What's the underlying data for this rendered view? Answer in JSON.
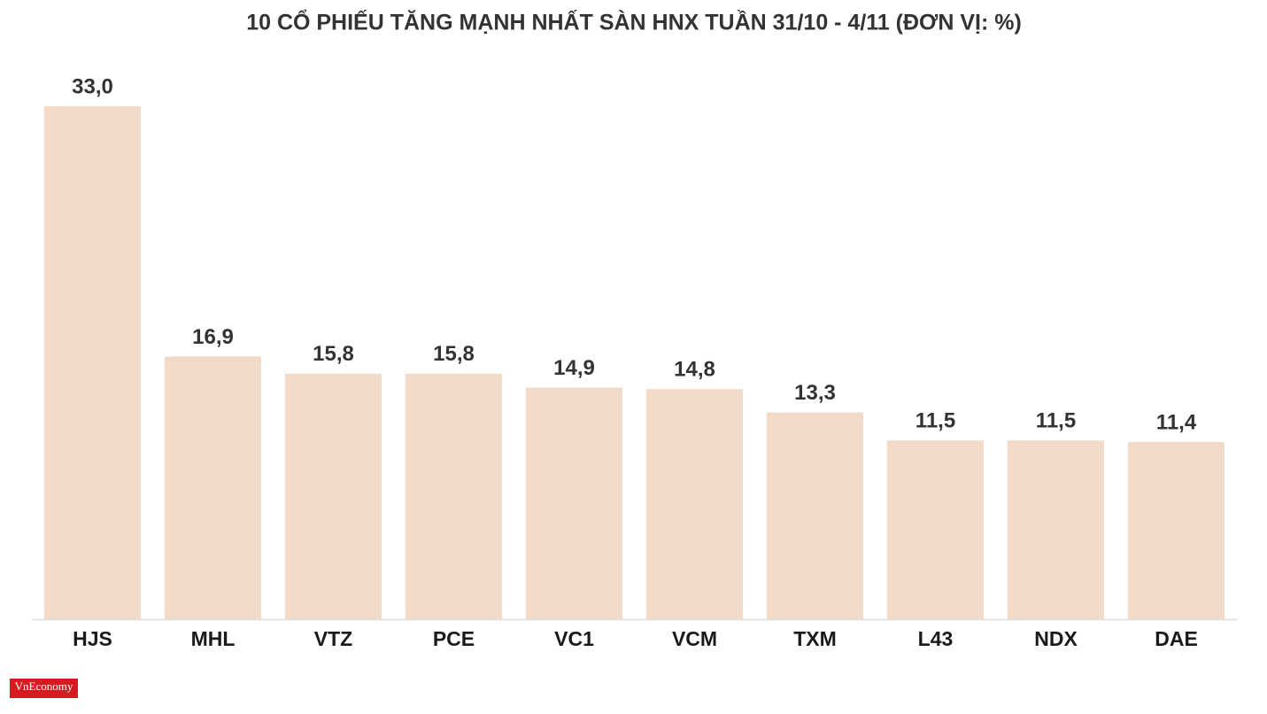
{
  "chart_data": {
    "type": "bar",
    "title": "10 CỔ PHIẾU TĂNG MẠNH NHẤT SÀN HNX TUẦN 31/10 - 4/11 (ĐƠN VỊ: %)",
    "categories": [
      "HJS",
      "MHL",
      "VTZ",
      "PCE",
      "VC1",
      "VCM",
      "TXM",
      "L43",
      "NDX",
      "DAE"
    ],
    "values": [
      33.0,
      16.9,
      15.8,
      15.8,
      14.9,
      14.8,
      13.3,
      11.5,
      11.5,
      11.4
    ],
    "value_labels": [
      "33,0",
      "16,9",
      "15,8",
      "15,8",
      "14,9",
      "14,8",
      "13,3",
      "11,5",
      "11,5",
      "11,4"
    ],
    "color": "#f2dac8",
    "ylim": [
      0,
      33
    ]
  },
  "logo": "VnEconomy"
}
